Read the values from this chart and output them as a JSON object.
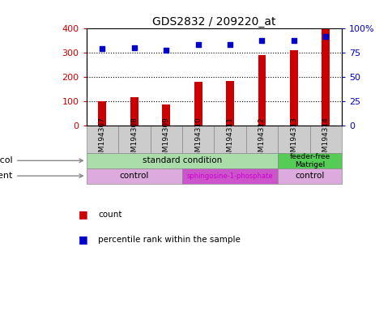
{
  "title": "GDS2832 / 209220_at",
  "samples": [
    "GSM194307",
    "GSM194308",
    "GSM194309",
    "GSM194310",
    "GSM194311",
    "GSM194312",
    "GSM194313",
    "GSM194314"
  ],
  "counts": [
    100,
    115,
    88,
    180,
    182,
    290,
    308,
    395
  ],
  "percentile_ranks": [
    79,
    80,
    77,
    83,
    83,
    87,
    87,
    91
  ],
  "ylim_left": [
    0,
    400
  ],
  "ylim_right": [
    0,
    100
  ],
  "yticks_left": [
    0,
    100,
    200,
    300,
    400
  ],
  "yticks_right": [
    0,
    25,
    50,
    75,
    100
  ],
  "yticklabels_right": [
    "0",
    "25",
    "50",
    "75",
    "100%"
  ],
  "bar_color": "#cc0000",
  "dot_color": "#0000cc",
  "bar_width": 0.25,
  "growth_protocol_std_color": "#aaddaa",
  "growth_protocol_ff_color": "#55cc55",
  "agent_control_color": "#ddaadd",
  "agent_sphingo_color": "#cc55cc",
  "agent_sphingo_text_color": "#cc00cc",
  "sample_box_color": "#cccccc",
  "left_label_color": "#cc0000",
  "right_label_color": "#0000cc",
  "title_fontsize": 10,
  "tick_fontsize": 8,
  "label_fontsize": 8,
  "sample_fontsize": 6.5,
  "row_fontsize": 7.5,
  "legend_fontsize": 7.5
}
